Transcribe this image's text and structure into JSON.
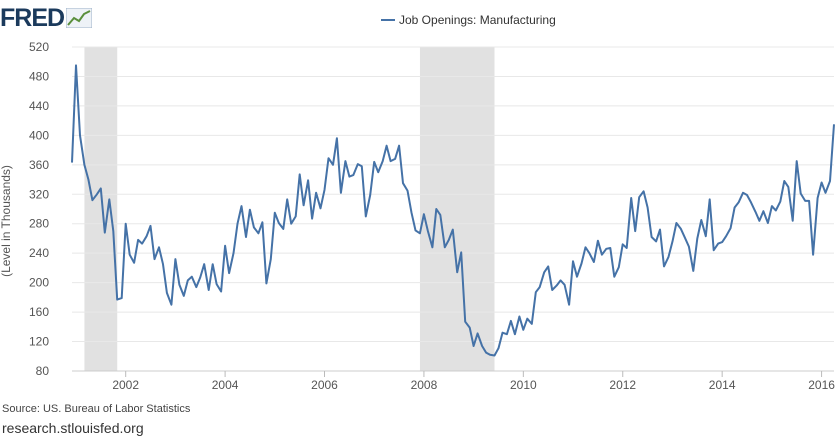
{
  "brand": {
    "logo_text": "FRED",
    "site": "research.stlouisfed.org"
  },
  "source": "Source: US. Bureau of Labor Statistics",
  "colors": {
    "line": "#4572a7",
    "recession": "#e1e1e1",
    "grid": "#e8e8e8"
  },
  "chart_data": {
    "type": "line",
    "legend": "Job Openings: Manufacturing",
    "legend_placement": "top-center",
    "ylabel": "(Level in Thousands)",
    "ylim": [
      80,
      520
    ],
    "yticks": [
      80,
      120,
      160,
      200,
      240,
      280,
      320,
      360,
      400,
      440,
      480,
      520
    ],
    "xlim": [
      2000.92,
      2016.25
    ],
    "xticks": [
      2002,
      2004,
      2006,
      2008,
      2010,
      2012,
      2014,
      2016
    ],
    "grid": true,
    "recessions": [
      [
        2001.17,
        2001.83
      ],
      [
        2007.92,
        2009.42
      ]
    ],
    "series": [
      {
        "name": "Job Openings: Manufacturing",
        "x": [
          2000.92,
          2001.0,
          2001.08,
          2001.17,
          2001.25,
          2001.33,
          2001.42,
          2001.5,
          2001.58,
          2001.67,
          2001.75,
          2001.83,
          2001.92,
          2002.0,
          2002.08,
          2002.17,
          2002.25,
          2002.33,
          2002.42,
          2002.5,
          2002.58,
          2002.67,
          2002.75,
          2002.83,
          2002.92,
          2003.0,
          2003.08,
          2003.17,
          2003.25,
          2003.33,
          2003.42,
          2003.5,
          2003.58,
          2003.67,
          2003.75,
          2003.83,
          2003.92,
          2004.0,
          2004.08,
          2004.17,
          2004.25,
          2004.33,
          2004.42,
          2004.5,
          2004.58,
          2004.67,
          2004.75,
          2004.83,
          2004.92,
          2005.0,
          2005.08,
          2005.17,
          2005.25,
          2005.33,
          2005.42,
          2005.5,
          2005.58,
          2005.67,
          2005.75,
          2005.83,
          2005.92,
          2006.0,
          2006.08,
          2006.17,
          2006.25,
          2006.33,
          2006.42,
          2006.5,
          2006.58,
          2006.67,
          2006.75,
          2006.83,
          2006.92,
          2007.0,
          2007.08,
          2007.17,
          2007.25,
          2007.33,
          2007.42,
          2007.5,
          2007.58,
          2007.67,
          2007.75,
          2007.83,
          2007.92,
          2008.0,
          2008.08,
          2008.17,
          2008.25,
          2008.33,
          2008.42,
          2008.5,
          2008.58,
          2008.67,
          2008.75,
          2008.83,
          2008.92,
          2009.0,
          2009.08,
          2009.17,
          2009.25,
          2009.33,
          2009.42,
          2009.5,
          2009.58,
          2009.67,
          2009.75,
          2009.83,
          2009.92,
          2010.0,
          2010.08,
          2010.17,
          2010.25,
          2010.33,
          2010.42,
          2010.5,
          2010.58,
          2010.67,
          2010.75,
          2010.83,
          2010.92,
          2011.0,
          2011.08,
          2011.17,
          2011.25,
          2011.33,
          2011.42,
          2011.5,
          2011.58,
          2011.67,
          2011.75,
          2011.83,
          2011.92,
          2012.0,
          2012.08,
          2012.17,
          2012.25,
          2012.33,
          2012.42,
          2012.5,
          2012.58,
          2012.67,
          2012.75,
          2012.83,
          2012.92,
          2013.0,
          2013.08,
          2013.17,
          2013.25,
          2013.33,
          2013.42,
          2013.5,
          2013.58,
          2013.67,
          2013.75,
          2013.83,
          2013.92,
          2014.0,
          2014.08,
          2014.17,
          2014.25,
          2014.33,
          2014.42,
          2014.5,
          2014.58,
          2014.67,
          2014.75,
          2014.83,
          2014.92,
          2015.0,
          2015.08,
          2015.17,
          2015.25,
          2015.33,
          2015.42,
          2015.5,
          2015.58,
          2015.67,
          2015.75,
          2015.83,
          2015.92,
          2016.0,
          2016.08,
          2016.17,
          2016.25
        ],
        "values": [
          363,
          495,
          400,
          360,
          340,
          312,
          320,
          328,
          268,
          313,
          270,
          177,
          179,
          280,
          238,
          227,
          258,
          253,
          263,
          277,
          232,
          248,
          225,
          186,
          170,
          232,
          197,
          182,
          203,
          208,
          194,
          207,
          225,
          190,
          225,
          198,
          188,
          250,
          213,
          240,
          280,
          304,
          262,
          299,
          275,
          267,
          282,
          199,
          232,
          295,
          281,
          273,
          313,
          280,
          290,
          347,
          305,
          339,
          287,
          322,
          301,
          326,
          369,
          360,
          396,
          322,
          365,
          344,
          346,
          361,
          358,
          290,
          319,
          364,
          350,
          365,
          386,
          365,
          368,
          386,
          335,
          325,
          295,
          271,
          267,
          293,
          270,
          248,
          300,
          292,
          248,
          258,
          272,
          214,
          241,
          147,
          139,
          114,
          131,
          114,
          105,
          102,
          101,
          111,
          132,
          130,
          148,
          130,
          154,
          136,
          151,
          144,
          187,
          194,
          214,
          222,
          190,
          196,
          203,
          197,
          170,
          229,
          208,
          226,
          248,
          240,
          228,
          257,
          238,
          246,
          247,
          208,
          221,
          252,
          247,
          315,
          270,
          316,
          324,
          302,
          262,
          256,
          272,
          222,
          235,
          256,
          281,
          273,
          261,
          249,
          216,
          260,
          285,
          263,
          313,
          244,
          253,
          255,
          263,
          274,
          302,
          309,
          322,
          319,
          309,
          296,
          284,
          297,
          281,
          304,
          298,
          310,
          338,
          330,
          284,
          365,
          321,
          311,
          311,
          238,
          315,
          336,
          322,
          338,
          415
        ]
      }
    ]
  }
}
